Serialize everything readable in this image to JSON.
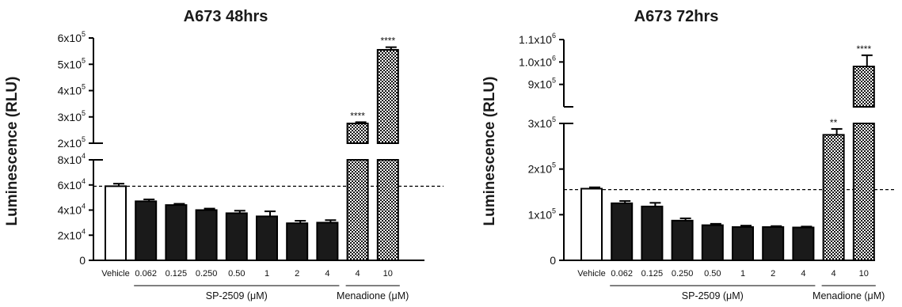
{
  "chart_data": [
    {
      "type": "bar",
      "title": "A673 48hrs",
      "ylabel": "Luminescence (RLU)",
      "categories": [
        "Vehicle",
        "0.062",
        "0.125",
        "0.250",
        "0.50",
        "1",
        "2",
        "4",
        "4",
        "10"
      ],
      "groups": [
        {
          "label": "SP-2509 (μM)",
          "from": 1,
          "to": 7
        },
        {
          "label": "Menadione (μM)",
          "from": 8,
          "to": 9
        }
      ],
      "values": [
        59000,
        47000,
        44000,
        40000,
        37500,
        35000,
        29500,
        30000,
        275000,
        555000
      ],
      "errors": [
        2000,
        1500,
        1000,
        1200,
        2000,
        4000,
        2000,
        2000,
        5000,
        10000
      ],
      "significance": [
        "",
        "",
        "",
        "",
        "",
        "",
        "",
        "",
        "****",
        "****"
      ],
      "fills": [
        "white",
        "black",
        "black",
        "black",
        "black",
        "black",
        "black",
        "black",
        "checker",
        "checker"
      ],
      "reference_line": 59000,
      "y_segments": [
        {
          "range": [
            0,
            80000
          ],
          "ticks": [
            {
              "v": 0,
              "label": "0"
            },
            {
              "v": 20000,
              "label": "2x10",
              "exp": "4"
            },
            {
              "v": 40000,
              "label": "4x10",
              "exp": "4"
            },
            {
              "v": 60000,
              "label": "6x10",
              "exp": "4"
            },
            {
              "v": 80000,
              "label": "8x10",
              "exp": "4"
            }
          ]
        },
        {
          "range": [
            200000,
            600000
          ],
          "ticks": [
            {
              "v": 200000,
              "label": "2x10",
              "exp": "5"
            },
            {
              "v": 300000,
              "label": "3x10",
              "exp": "5"
            },
            {
              "v": 400000,
              "label": "4x10",
              "exp": "5"
            },
            {
              "v": 500000,
              "label": "5x10",
              "exp": "5"
            },
            {
              "v": 600000,
              "label": "6x10",
              "exp": "5"
            }
          ]
        }
      ]
    },
    {
      "type": "bar",
      "title": "A673 72hrs",
      "ylabel": "Luminescence (RLU)",
      "categories": [
        "Vehicle",
        "0.062",
        "0.125",
        "0.250",
        "0.50",
        "1",
        "2",
        "4",
        "4",
        "10"
      ],
      "groups": [
        {
          "label": "SP-2509 (μM)",
          "from": 1,
          "to": 7
        },
        {
          "label": "Menadione (μM)",
          "from": 8,
          "to": 9
        }
      ],
      "values": [
        157000,
        125000,
        118000,
        87000,
        77000,
        73000,
        73000,
        72000,
        275000,
        980000
      ],
      "errors": [
        3000,
        5000,
        8000,
        5000,
        3000,
        3000,
        2000,
        2000,
        13000,
        50000
      ],
      "significance": [
        "",
        "",
        "",
        "",
        "",
        "",
        "",
        "",
        "**",
        "****"
      ],
      "fills": [
        "white",
        "black",
        "black",
        "black",
        "black",
        "black",
        "black",
        "black",
        "checker",
        "checker"
      ],
      "reference_line": 155000,
      "y_segments": [
        {
          "range": [
            0,
            300000
          ],
          "ticks": [
            {
              "v": 0,
              "label": "0"
            },
            {
              "v": 100000,
              "label": "1x10",
              "exp": "5"
            },
            {
              "v": 200000,
              "label": "2x10",
              "exp": "5"
            },
            {
              "v": 300000,
              "label": "3x10",
              "exp": "5"
            }
          ]
        },
        {
          "range": [
            800000,
            1100000
          ],
          "ticks": [
            {
              "v": 900000,
              "label": "9x10",
              "exp": "5"
            },
            {
              "v": 1000000,
              "label": "1.0x10",
              "exp": "6"
            },
            {
              "v": 1100000,
              "label": "1.1x10",
              "exp": "6"
            }
          ]
        }
      ]
    }
  ]
}
